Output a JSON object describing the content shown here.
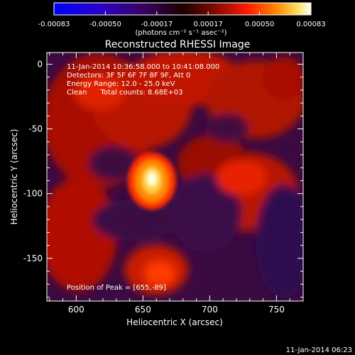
{
  "colorbar": {
    "tick_labels": [
      "-0.00083",
      "-0.00050",
      "-0.00017",
      "0.00017",
      "0.00050",
      "0.00083"
    ],
    "units": "(photons cm⁻² s⁻¹ asec⁻²)"
  },
  "plot": {
    "title": "Reconstructed RHESSI Image",
    "xlabel": "Heliocentric X (arcsec)",
    "ylabel": "Heliocentric Y (arcsec)",
    "x_ticks": [
      "600",
      "650",
      "700",
      "750"
    ],
    "y_ticks": [
      "0",
      "-50",
      "-100",
      "-150"
    ],
    "info_lines": [
      "11-Jan-2014 10:36:58.000 to 10:41:08.000",
      "Detectors: 3F 5F 6F 7F 8F 9F, Att 0",
      "Energy Range: 12.0 - 25.0 keV",
      "Clean      Total counts: 8.68E+03"
    ],
    "peak_text": "Position of Peak = [655,-89]"
  },
  "footer": {
    "timestamp": "11-Jan-2014 06:23"
  },
  "colors": {
    "background": "#000000",
    "axes": "#ffffff"
  }
}
